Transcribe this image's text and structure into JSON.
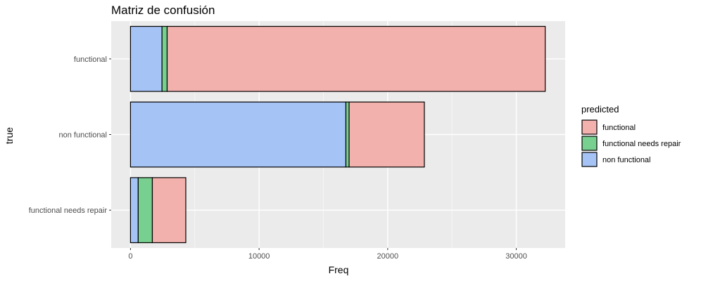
{
  "chart_data": {
    "type": "bar",
    "orientation": "horizontal",
    "stacked": true,
    "title": "Matriz de confusión",
    "xlabel": "Freq",
    "ylabel": "true",
    "xlim": [
      -1500,
      33800
    ],
    "xticks": [
      0,
      10000,
      20000,
      30000
    ],
    "xtick_labels": [
      "0",
      "10000",
      "20000",
      "30000"
    ],
    "categories": [
      "functional",
      "non functional",
      "functional needs repair"
    ],
    "grid": true,
    "legend": {
      "title": "predicted",
      "position": "right"
    },
    "series": [
      {
        "name": "non functional",
        "color": "#a6c3f5",
        "values": [
          2450,
          16750,
          600
        ]
      },
      {
        "name": "functional needs repair",
        "color": "#77d08f",
        "values": [
          400,
          250,
          1100
        ]
      },
      {
        "name": "functional",
        "color": "#f2b1ad",
        "values": [
          29400,
          5850,
          2600
        ]
      }
    ],
    "legend_order": [
      "functional",
      "functional needs repair",
      "non functional"
    ]
  }
}
